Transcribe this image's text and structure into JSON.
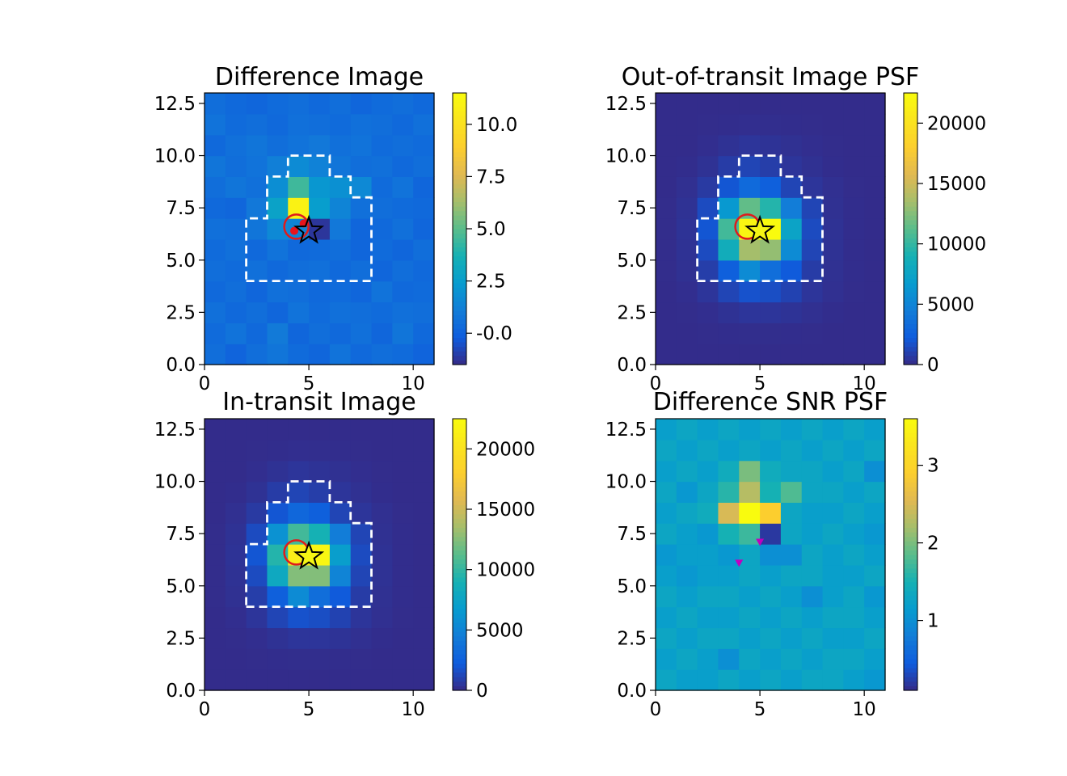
{
  "chart_data": [
    {
      "type": "heatmap",
      "title": "Difference Image",
      "xlabel": "",
      "ylabel": "",
      "xlim": [
        0,
        11
      ],
      "ylim": [
        0,
        13
      ],
      "x_ticks": [
        "0",
        "5",
        "10"
      ],
      "y_ticks": [
        "0.0",
        "2.5",
        "5.0",
        "7.5",
        "10.0",
        "12.5"
      ],
      "colorbar": {
        "range": [
          -1.5,
          11.5
        ],
        "ticks": [
          "-0.0",
          "2.5",
          "5.0",
          "7.5",
          "10.0"
        ]
      },
      "aperture": [
        [
          2,
          4
        ],
        [
          8,
          4
        ],
        [
          8,
          8
        ],
        [
          7,
          8
        ],
        [
          7,
          9
        ],
        [
          6,
          9
        ],
        [
          6,
          10
        ],
        [
          4,
          10
        ],
        [
          4,
          9
        ],
        [
          3,
          9
        ],
        [
          3,
          7
        ],
        [
          2,
          7
        ],
        [
          2,
          4
        ]
      ],
      "grid": [
        [
          0.5,
          0.1,
          0.5,
          0.8,
          0.4,
          0.2,
          0.7,
          0.3,
          0.5,
          0.4,
          0.1
        ],
        [
          0.4,
          0.7,
          0.3,
          1.0,
          0.2,
          0.5,
          0.3,
          0.6,
          0.2,
          0.8,
          0.3
        ],
        [
          0.6,
          0.3,
          0.5,
          0.2,
          0.7,
          0.4,
          0.6,
          0.5,
          0.4,
          0.6,
          0.5
        ],
        [
          0.3,
          0.5,
          0.2,
          0.6,
          0.5,
          0.3,
          0.4,
          0.2,
          0.7,
          0.3,
          0.4
        ],
        [
          0.5,
          0.4,
          0.6,
          0.3,
          0.5,
          0.6,
          0.3,
          0.5,
          0.2,
          0.5,
          0.3
        ],
        [
          0.4,
          0.6,
          0.3,
          0.7,
          0.3,
          0.4,
          0.5,
          0.2,
          0.4,
          0.2,
          0.5
        ],
        [
          0.6,
          0.5,
          0.8,
          1.6,
          1.4,
          -1.2,
          0.9,
          0.2,
          0.3,
          0.6,
          0.2
        ],
        [
          0.3,
          0.2,
          0.9,
          2.8,
          11.0,
          2.5,
          1.4,
          0.6,
          0.5,
          0.4,
          0.3
        ],
        [
          0.5,
          0.8,
          0.6,
          1.8,
          4.5,
          2.2,
          1.9,
          1.6,
          0.4,
          0.7,
          0.2
        ],
        [
          0.8,
          0.5,
          0.7,
          1.2,
          1.7,
          1.3,
          0.8,
          0.5,
          0.6,
          0.3,
          0.5
        ],
        [
          0.3,
          0.6,
          0.8,
          0.5,
          0.7,
          0.9,
          0.6,
          0.7,
          0.4,
          0.5,
          0.4
        ],
        [
          0.7,
          0.4,
          0.5,
          0.3,
          0.6,
          0.5,
          0.4,
          0.6,
          0.5,
          0.3,
          0.6
        ],
        [
          0.5,
          0.3,
          0.2,
          0.4,
          0.5,
          0.3,
          0.5,
          0.2,
          0.4,
          0.5,
          0.3
        ]
      ],
      "star_marker": [
        5.0,
        6.4
      ],
      "circle_marker": [
        4.4,
        6.6
      ],
      "dots": [
        [
          4.3,
          6.4
        ],
        [
          4.75,
          6.75
        ]
      ]
    },
    {
      "type": "heatmap",
      "title": "Out-of-transit Image PSF",
      "xlabel": "",
      "ylabel": "",
      "xlim": [
        0,
        11
      ],
      "ylim": [
        0,
        13
      ],
      "x_ticks": [
        "0",
        "5",
        "10"
      ],
      "y_ticks": [
        "0.0",
        "2.5",
        "5.0",
        "7.5",
        "10.0",
        "12.5"
      ],
      "colorbar": {
        "range": [
          0,
          22500
        ],
        "ticks": [
          "0",
          "5000",
          "10000",
          "15000",
          "20000"
        ]
      },
      "aperture": [
        [
          2,
          4
        ],
        [
          8,
          4
        ],
        [
          8,
          8
        ],
        [
          7,
          8
        ],
        [
          7,
          9
        ],
        [
          6,
          9
        ],
        [
          6,
          10
        ],
        [
          4,
          10
        ],
        [
          4,
          9
        ],
        [
          3,
          9
        ],
        [
          3,
          7
        ],
        [
          2,
          7
        ],
        [
          2,
          4
        ]
      ],
      "grid": [
        [
          100,
          100,
          100,
          100,
          100,
          100,
          100,
          100,
          100,
          100,
          100
        ],
        [
          100,
          100,
          120,
          150,
          160,
          160,
          150,
          120,
          100,
          100,
          100
        ],
        [
          100,
          130,
          200,
          350,
          500,
          500,
          400,
          250,
          150,
          110,
          100
        ],
        [
          100,
          200,
          500,
          1200,
          1800,
          1600,
          1100,
          500,
          250,
          130,
          100
        ],
        [
          120,
          300,
          900,
          2500,
          5500,
          3500,
          2200,
          800,
          300,
          150,
          100
        ],
        [
          120,
          350,
          1500,
          8500,
          13500,
          13000,
          5500,
          1200,
          350,
          150,
          100
        ],
        [
          130,
          400,
          2000,
          10500,
          22000,
          22500,
          7500,
          1500,
          350,
          150,
          100
        ],
        [
          120,
          350,
          1500,
          6500,
          11500,
          9500,
          4500,
          1200,
          300,
          150,
          100
        ],
        [
          110,
          250,
          700,
          2000,
          3200,
          2500,
          1200,
          500,
          250,
          120,
          100
        ],
        [
          100,
          150,
          350,
          800,
          1200,
          900,
          500,
          300,
          150,
          100,
          100
        ],
        [
          100,
          110,
          200,
          350,
          500,
          400,
          300,
          200,
          120,
          100,
          100
        ],
        [
          100,
          100,
          120,
          150,
          200,
          180,
          150,
          120,
          100,
          100,
          100
        ],
        [
          100,
          100,
          100,
          100,
          100,
          100,
          100,
          100,
          100,
          100,
          100
        ]
      ],
      "star_marker": [
        5.0,
        6.4
      ],
      "circle_marker": [
        4.4,
        6.6
      ]
    },
    {
      "type": "heatmap",
      "title": "In-transit Image",
      "xlabel": "",
      "ylabel": "",
      "xlim": [
        0,
        11
      ],
      "ylim": [
        0,
        13
      ],
      "x_ticks": [
        "0",
        "5",
        "10"
      ],
      "y_ticks": [
        "0.0",
        "2.5",
        "5.0",
        "7.5",
        "10.0",
        "12.5"
      ],
      "colorbar": {
        "range": [
          0,
          22500
        ],
        "ticks": [
          "0",
          "5000",
          "10000",
          "15000",
          "20000"
        ]
      },
      "aperture": [
        [
          2,
          4
        ],
        [
          8,
          4
        ],
        [
          8,
          8
        ],
        [
          7,
          8
        ],
        [
          7,
          9
        ],
        [
          6,
          9
        ],
        [
          6,
          10
        ],
        [
          4,
          10
        ],
        [
          4,
          9
        ],
        [
          3,
          9
        ],
        [
          3,
          7
        ],
        [
          2,
          7
        ],
        [
          2,
          4
        ]
      ],
      "grid": [
        [
          100,
          100,
          100,
          100,
          100,
          100,
          100,
          100,
          100,
          100,
          100
        ],
        [
          100,
          100,
          120,
          150,
          160,
          160,
          150,
          120,
          100,
          100,
          100
        ],
        [
          100,
          130,
          200,
          350,
          500,
          500,
          400,
          250,
          150,
          110,
          100
        ],
        [
          100,
          200,
          500,
          1200,
          1800,
          1600,
          1100,
          500,
          250,
          130,
          100
        ],
        [
          120,
          300,
          900,
          2500,
          5500,
          3500,
          2200,
          800,
          300,
          150,
          100
        ],
        [
          120,
          350,
          1500,
          8000,
          12500,
          12500,
          5000,
          1200,
          350,
          150,
          100
        ],
        [
          130,
          400,
          2000,
          9500,
          21000,
          22000,
          7000,
          1500,
          350,
          150,
          100
        ],
        [
          120,
          350,
          1500,
          6000,
          10500,
          9000,
          4500,
          1200,
          300,
          150,
          100
        ],
        [
          110,
          250,
          700,
          2000,
          3000,
          2500,
          1200,
          500,
          250,
          120,
          100
        ],
        [
          100,
          150,
          350,
          800,
          1200,
          900,
          500,
          300,
          150,
          100,
          100
        ],
        [
          100,
          110,
          200,
          350,
          500,
          400,
          300,
          200,
          120,
          100,
          100
        ],
        [
          100,
          100,
          120,
          150,
          200,
          180,
          150,
          120,
          100,
          100,
          100
        ],
        [
          100,
          100,
          100,
          100,
          100,
          100,
          100,
          100,
          100,
          100,
          100
        ]
      ],
      "star_marker": [
        5.0,
        6.4
      ],
      "circle_marker": [
        4.4,
        6.6
      ]
    },
    {
      "type": "heatmap",
      "title": "Difference SNR PSF",
      "xlabel": "",
      "ylabel": "",
      "xlim": [
        0,
        11
      ],
      "ylim": [
        0,
        13
      ],
      "x_ticks": [
        "0",
        "5",
        "10"
      ],
      "y_ticks": [
        "0.0",
        "2.5",
        "5.0",
        "7.5",
        "10.0",
        "12.5"
      ],
      "colorbar": {
        "range": [
          0.1,
          3.6
        ],
        "ticks": [
          "1",
          "2",
          "3"
        ]
      },
      "grid": [
        [
          1.3,
          1.2,
          1.2,
          1.3,
          1.2,
          1.3,
          1.2,
          1.3,
          1.3,
          1.2,
          1.1
        ],
        [
          1.2,
          1.3,
          1.2,
          1.0,
          1.3,
          1.2,
          1.3,
          1.2,
          1.3,
          1.3,
          1.2
        ],
        [
          1.3,
          1.2,
          1.3,
          1.3,
          1.2,
          1.3,
          1.2,
          1.3,
          1.2,
          1.2,
          1.3
        ],
        [
          1.2,
          1.3,
          1.2,
          1.2,
          1.3,
          1.2,
          1.3,
          1.2,
          1.3,
          1.3,
          1.2
        ],
        [
          1.3,
          1.2,
          1.3,
          1.3,
          1.2,
          1.3,
          1.2,
          1.0,
          1.2,
          1.3,
          1.1
        ],
        [
          1.2,
          1.1,
          1.2,
          1.2,
          1.3,
          1.2,
          1.3,
          1.3,
          1.2,
          1.2,
          1.3
        ],
        [
          1.1,
          1.2,
          1.2,
          1.1,
          1.3,
          1.0,
          1.0,
          1.3,
          1.2,
          1.3,
          1.2
        ],
        [
          1.3,
          1.2,
          1.1,
          1.5,
          1.7,
          0.2,
          1.3,
          1.2,
          1.3,
          1.2,
          1.1
        ],
        [
          1.2,
          1.3,
          1.4,
          2.5,
          3.6,
          2.9,
          1.3,
          1.2,
          1.2,
          1.3,
          1.2
        ],
        [
          1.3,
          1.1,
          1.3,
          1.6,
          2.3,
          1.5,
          1.8,
          1.3,
          1.3,
          1.2,
          1.3
        ],
        [
          1.2,
          1.3,
          1.2,
          1.4,
          2.0,
          1.4,
          1.3,
          1.3,
          1.2,
          1.3,
          1.0
        ],
        [
          1.3,
          1.2,
          1.3,
          1.2,
          1.3,
          1.2,
          1.3,
          1.2,
          1.3,
          1.2,
          1.3
        ],
        [
          1.2,
          1.3,
          1.2,
          1.3,
          1.2,
          1.3,
          1.2,
          1.3,
          1.2,
          1.3,
          1.2
        ]
      ],
      "triangles": [
        [
          4.0,
          6.1
        ],
        [
          5.0,
          7.1
        ]
      ]
    }
  ]
}
